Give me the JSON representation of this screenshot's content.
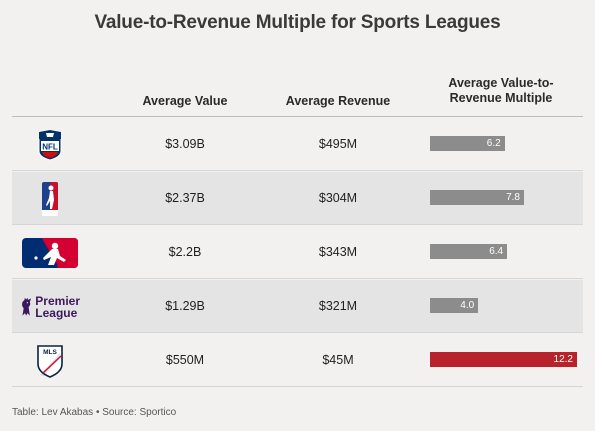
{
  "title": "Value-to-Revenue Multiple for Sports Leagues",
  "columns": {
    "value": "Average Value",
    "revenue": "Average Revenue",
    "multiple_line1": "Average Value-to-",
    "multiple_line2": "Revenue Multiple"
  },
  "footer": "Table: Lev Akabas • Source: Sportico",
  "colors": {
    "bar": "#8c8c8c",
    "highlight": "#b8232b",
    "background": "#f2f1f0",
    "shaded_row": "#e4e4e4"
  },
  "logos": {
    "nfl": "NFL",
    "premier_line1": "Premier",
    "premier_line2": "League",
    "mls": "MLS"
  },
  "rows": [
    {
      "league": "nfl-logo",
      "value": "$3.09B",
      "revenue": "$495M",
      "multiple_label": "6.2"
    },
    {
      "league": "nba-logo",
      "value": "$2.37B",
      "revenue": "$304M",
      "multiple_label": "7.8"
    },
    {
      "league": "mlb-logo",
      "value": "$2.2B",
      "revenue": "$343M",
      "multiple_label": "6.4"
    },
    {
      "league": "premier-league-logo",
      "value": "$1.29B",
      "revenue": "$321M",
      "multiple_label": "4.0"
    },
    {
      "league": "mls-logo",
      "value": "$550M",
      "revenue": "$45M",
      "multiple_label": "12.2"
    }
  ],
  "chart_data": {
    "type": "bar",
    "categories": [
      "nfl-logo",
      "nba-logo",
      "mlb-logo",
      "premier-league-logo",
      "mls-logo"
    ],
    "values": [
      6.2,
      7.8,
      6.4,
      4.0,
      12.2
    ],
    "highlight_index": 4
  }
}
